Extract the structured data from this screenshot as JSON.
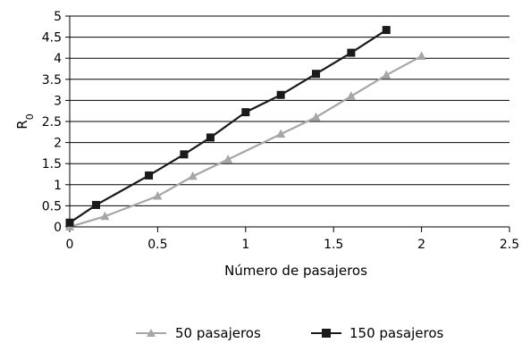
{
  "chart_data": {
    "type": "line",
    "title": "",
    "xlabel": "Número de pasajeros",
    "ylabel": "R",
    "ylabel_subscript": "0",
    "xlim": [
      0,
      2.5
    ],
    "ylim": [
      0,
      5
    ],
    "x_ticks": [
      "0",
      "0.5",
      "1",
      "1.5",
      "2",
      "2.5"
    ],
    "y_ticks": [
      "0",
      "0.5",
      "1",
      "1.5",
      "2",
      "2.5",
      "3",
      "3.5",
      "4",
      "4.5",
      "5"
    ],
    "x_tick_values": [
      0,
      0.5,
      1,
      1.5,
      2,
      2.5
    ],
    "y_tick_values": [
      0,
      0.5,
      1,
      1.5,
      2,
      2.5,
      3,
      3.5,
      4,
      4.5,
      5
    ],
    "grid": "horizontal",
    "legend_position": "bottom",
    "series": [
      {
        "name": "50 pasajeros",
        "marker": "triangle",
        "color": "#a6a6a6",
        "x": [
          0,
          0.2,
          0.5,
          0.7,
          0.9,
          1.2,
          1.4,
          1.6,
          1.8,
          2.0
        ],
        "y": [
          0.0,
          0.25,
          0.73,
          1.2,
          1.6,
          2.2,
          2.6,
          3.1,
          3.6,
          4.05
        ]
      },
      {
        "name": "150 pasajeros",
        "marker": "square",
        "color": "#1a1a1a",
        "x": [
          0,
          0.15,
          0.45,
          0.65,
          0.8,
          1.0,
          1.2,
          1.4,
          1.6,
          1.8
        ],
        "y": [
          0.1,
          0.52,
          1.22,
          1.72,
          2.12,
          2.72,
          3.13,
          3.63,
          4.13,
          4.67
        ]
      }
    ]
  }
}
